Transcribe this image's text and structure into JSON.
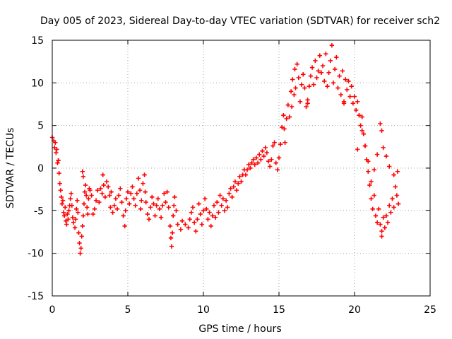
{
  "chart_data": {
    "type": "scatter",
    "title": "Day 005 of 2023, Sidereal Day-to-day VTEC variation (SDTVAR) for receiver sch2",
    "xlabel": "GPS time / hours",
    "ylabel": "SDTVAR / TECUs",
    "xlim": [
      0,
      25
    ],
    "ylim": [
      -15,
      15
    ],
    "xticks": [
      0,
      5,
      10,
      15,
      20,
      25
    ],
    "yticks": [
      -15,
      -10,
      -5,
      0,
      5,
      10,
      15
    ],
    "grid": true,
    "marker": "+",
    "color": "#ff0000",
    "series": [
      {
        "name": "sch2",
        "points": [
          [
            0.0,
            3.6
          ],
          [
            0.1,
            3.2
          ],
          [
            0.15,
            2.4
          ],
          [
            0.2,
            3.0
          ],
          [
            0.25,
            1.8
          ],
          [
            0.3,
            2.2
          ],
          [
            0.35,
            0.6
          ],
          [
            0.4,
            0.9
          ],
          [
            0.45,
            -0.6
          ],
          [
            0.5,
            -1.8
          ],
          [
            0.55,
            -2.6
          ],
          [
            0.6,
            -3.4
          ],
          [
            0.65,
            -4.2
          ],
          [
            0.7,
            -3.8
          ],
          [
            0.75,
            -5.2
          ],
          [
            0.8,
            -5.6
          ],
          [
            0.85,
            -4.6
          ],
          [
            0.9,
            -6.2
          ],
          [
            0.95,
            -6.6
          ],
          [
            1.0,
            -5.4
          ],
          [
            1.05,
            -6.0
          ],
          [
            1.1,
            -5.0
          ],
          [
            1.15,
            -4.4
          ],
          [
            1.2,
            -3.6
          ],
          [
            1.25,
            -3.0
          ],
          [
            1.3,
            -4.4
          ],
          [
            1.35,
            -5.8
          ],
          [
            1.4,
            -6.4
          ],
          [
            1.5,
            -7.0
          ],
          [
            1.55,
            -6.0
          ],
          [
            1.6,
            -4.8
          ],
          [
            1.65,
            -3.8
          ],
          [
            1.7,
            -5.2
          ],
          [
            1.75,
            -7.6
          ],
          [
            1.8,
            -8.8
          ],
          [
            1.85,
            -10.0
          ],
          [
            1.9,
            -9.4
          ],
          [
            1.95,
            -8.0
          ],
          [
            2.0,
            -6.8
          ],
          [
            2.05,
            -5.6
          ],
          [
            2.1,
            -4.2
          ],
          [
            2.15,
            -2.8
          ],
          [
            2.2,
            -2.0
          ],
          [
            2.25,
            -3.2
          ],
          [
            2.3,
            -4.6
          ],
          [
            2.35,
            -5.4
          ],
          [
            2.4,
            -3.6
          ],
          [
            2.45,
            -2.4
          ],
          [
            2.0,
            -0.4
          ],
          [
            2.05,
            -1.0
          ],
          [
            2.5,
            -2.6
          ],
          [
            2.6,
            -3.2
          ],
          [
            2.7,
            -5.4
          ],
          [
            2.8,
            -4.8
          ],
          [
            2.9,
            -3.8
          ],
          [
            3.0,
            -2.6
          ],
          [
            3.1,
            -4.0
          ],
          [
            3.2,
            -2.4
          ],
          [
            3.3,
            -3.0
          ],
          [
            3.35,
            -0.8
          ],
          [
            3.4,
            -2.0
          ],
          [
            3.5,
            -3.4
          ],
          [
            3.6,
            -1.6
          ],
          [
            3.7,
            -2.2
          ],
          [
            3.8,
            -3.2
          ],
          [
            3.85,
            -4.6
          ],
          [
            3.9,
            -2.8
          ],
          [
            4.0,
            -5.2
          ],
          [
            4.1,
            -4.4
          ],
          [
            4.2,
            -3.6
          ],
          [
            4.3,
            -4.8
          ],
          [
            4.4,
            -3.2
          ],
          [
            4.5,
            -2.4
          ],
          [
            4.6,
            -4.0
          ],
          [
            4.7,
            -5.6
          ],
          [
            4.8,
            -6.8
          ],
          [
            4.85,
            -5.0
          ],
          [
            4.9,
            -3.6
          ],
          [
            5.0,
            -2.8
          ],
          [
            5.1,
            -4.2
          ],
          [
            5.2,
            -3.0
          ],
          [
            5.3,
            -2.2
          ],
          [
            5.4,
            -3.6
          ],
          [
            5.5,
            -4.4
          ],
          [
            5.6,
            -3.0
          ],
          [
            5.7,
            -1.2
          ],
          [
            5.8,
            -2.6
          ],
          [
            5.85,
            -4.8
          ],
          [
            5.9,
            -3.8
          ],
          [
            6.0,
            -1.8
          ],
          [
            6.1,
            -0.8
          ],
          [
            6.15,
            -2.8
          ],
          [
            6.2,
            -4.0
          ],
          [
            6.3,
            -5.4
          ],
          [
            6.4,
            -6.0
          ],
          [
            6.5,
            -4.6
          ],
          [
            6.6,
            -3.4
          ],
          [
            6.7,
            -4.2
          ],
          [
            6.8,
            -5.6
          ],
          [
            6.9,
            -4.4
          ],
          [
            7.0,
            -3.6
          ],
          [
            7.1,
            -4.8
          ],
          [
            7.2,
            -5.8
          ],
          [
            7.3,
            -4.4
          ],
          [
            7.4,
            -3.0
          ],
          [
            7.5,
            -4.0
          ],
          [
            7.6,
            -2.8
          ],
          [
            7.7,
            -4.6
          ],
          [
            7.8,
            -6.8
          ],
          [
            7.85,
            -8.2
          ],
          [
            7.9,
            -9.2
          ],
          [
            7.95,
            -7.6
          ],
          [
            8.0,
            -5.6
          ],
          [
            8.05,
            -4.4
          ],
          [
            8.1,
            -3.4
          ],
          [
            8.2,
            -5.0
          ],
          [
            8.3,
            -6.6
          ],
          [
            8.5,
            -7.2
          ],
          [
            8.6,
            -6.2
          ],
          [
            8.8,
            -6.6
          ],
          [
            9.0,
            -7.0
          ],
          [
            9.1,
            -6.0
          ],
          [
            9.2,
            -5.2
          ],
          [
            9.3,
            -4.6
          ],
          [
            9.4,
            -6.4
          ],
          [
            9.5,
            -7.4
          ],
          [
            9.6,
            -6.0
          ],
          [
            9.7,
            -4.2
          ],
          [
            9.8,
            -5.4
          ],
          [
            9.9,
            -6.6
          ],
          [
            10.0,
            -5.0
          ],
          [
            10.1,
            -3.6
          ],
          [
            10.2,
            -4.8
          ],
          [
            10.3,
            -6.0
          ],
          [
            10.4,
            -5.2
          ],
          [
            10.5,
            -6.8
          ],
          [
            10.6,
            -5.6
          ],
          [
            10.7,
            -4.4
          ],
          [
            10.8,
            -5.8
          ],
          [
            10.9,
            -4.0
          ],
          [
            11.0,
            -5.2
          ],
          [
            11.1,
            -3.2
          ],
          [
            11.2,
            -4.4
          ],
          [
            11.3,
            -3.6
          ],
          [
            11.4,
            -5.0
          ],
          [
            11.5,
            -3.8
          ],
          [
            11.6,
            -4.6
          ],
          [
            11.7,
            -3.0
          ],
          [
            11.8,
            -2.4
          ],
          [
            11.9,
            -3.4
          ],
          [
            12.0,
            -2.2
          ],
          [
            12.1,
            -1.6
          ],
          [
            12.2,
            -2.6
          ],
          [
            12.3,
            -1.8
          ],
          [
            12.4,
            -1.0
          ],
          [
            12.5,
            -1.6
          ],
          [
            12.6,
            -0.8
          ],
          [
            12.7,
            -0.2
          ],
          [
            12.8,
            -0.8
          ],
          [
            12.9,
            -0.2
          ],
          [
            13.0,
            0.4
          ],
          [
            13.1,
            0.0
          ],
          [
            13.2,
            0.6
          ],
          [
            13.3,
            1.0
          ],
          [
            13.4,
            0.4
          ],
          [
            13.5,
            1.2
          ],
          [
            13.6,
            0.6
          ],
          [
            13.7,
            1.6
          ],
          [
            13.8,
            1.0
          ],
          [
            13.9,
            2.0
          ],
          [
            14.0,
            1.4
          ],
          [
            14.1,
            2.4
          ],
          [
            14.2,
            1.8
          ],
          [
            14.3,
            0.8
          ],
          [
            14.4,
            0.2
          ],
          [
            14.5,
            1.0
          ],
          [
            14.6,
            2.6
          ],
          [
            14.7,
            3.0
          ],
          [
            14.8,
            0.6
          ],
          [
            14.9,
            -0.2
          ],
          [
            15.0,
            1.2
          ],
          [
            15.1,
            2.8
          ],
          [
            15.2,
            4.8
          ],
          [
            15.3,
            6.2
          ],
          [
            15.35,
            4.6
          ],
          [
            15.4,
            3.0
          ],
          [
            15.5,
            5.8
          ],
          [
            15.6,
            7.4
          ],
          [
            15.7,
            6.0
          ],
          [
            15.8,
            9.0
          ],
          [
            15.85,
            7.2
          ],
          [
            15.9,
            10.4
          ],
          [
            16.0,
            8.6
          ],
          [
            16.05,
            11.6
          ],
          [
            16.1,
            9.4
          ],
          [
            16.2,
            12.2
          ],
          [
            16.3,
            10.6
          ],
          [
            16.4,
            7.8
          ],
          [
            16.5,
            9.8
          ],
          [
            16.6,
            11.0
          ],
          [
            16.7,
            9.4
          ],
          [
            16.8,
            7.2
          ],
          [
            16.9,
            8.0
          ],
          [
            17.0,
            9.6
          ],
          [
            17.1,
            10.8
          ],
          [
            17.2,
            11.8
          ],
          [
            17.3,
            9.8
          ],
          [
            17.4,
            12.6
          ],
          [
            17.5,
            10.6
          ],
          [
            17.6,
            11.4
          ],
          [
            17.7,
            13.2
          ],
          [
            17.8,
            11.2
          ],
          [
            17.9,
            12.0
          ],
          [
            18.0,
            10.2
          ],
          [
            18.1,
            13.4
          ],
          [
            18.2,
            9.6
          ],
          [
            18.3,
            11.2
          ],
          [
            18.4,
            12.6
          ],
          [
            18.5,
            14.4
          ],
          [
            18.6,
            10.0
          ],
          [
            18.7,
            11.6
          ],
          [
            18.8,
            13.0
          ],
          [
            18.9,
            9.4
          ],
          [
            19.0,
            10.8
          ],
          [
            19.1,
            8.6
          ],
          [
            19.2,
            11.4
          ],
          [
            19.3,
            7.6
          ],
          [
            19.4,
            10.4
          ],
          [
            19.5,
            9.2
          ],
          [
            19.6,
            10.2
          ],
          [
            19.7,
            8.4
          ],
          [
            19.8,
            9.6
          ],
          [
            19.9,
            7.6
          ],
          [
            20.0,
            8.4
          ],
          [
            20.1,
            6.8
          ],
          [
            20.2,
            7.8
          ],
          [
            20.3,
            6.2
          ],
          [
            20.4,
            5.0
          ],
          [
            20.5,
            6.0
          ],
          [
            20.6,
            4.0
          ],
          [
            20.7,
            2.6
          ],
          [
            20.8,
            1.0
          ],
          [
            20.9,
            -0.4
          ],
          [
            21.0,
            -2.0
          ],
          [
            21.1,
            -3.6
          ],
          [
            21.2,
            -4.8
          ],
          [
            21.3,
            -3.2
          ],
          [
            21.4,
            -5.6
          ],
          [
            21.5,
            -6.4
          ],
          [
            21.6,
            -4.8
          ],
          [
            21.7,
            -6.6
          ],
          [
            21.8,
            -7.4
          ],
          [
            21.9,
            -5.8
          ],
          [
            22.0,
            -7.0
          ],
          [
            22.1,
            -5.6
          ],
          [
            22.2,
            -6.4
          ],
          [
            22.3,
            -4.4
          ],
          [
            22.4,
            -5.2
          ],
          [
            22.5,
            -3.6
          ],
          [
            22.6,
            -4.6
          ],
          [
            22.7,
            -2.2
          ],
          [
            22.8,
            -3.2
          ],
          [
            22.85,
            -0.4
          ],
          [
            22.6,
            -0.8
          ],
          [
            22.3,
            0.2
          ],
          [
            22.1,
            1.4
          ],
          [
            21.9,
            2.4
          ],
          [
            21.8,
            4.4
          ],
          [
            21.7,
            5.2
          ],
          [
            21.5,
            1.6
          ],
          [
            21.3,
            -0.2
          ],
          [
            21.1,
            -1.6
          ],
          [
            20.9,
            0.8
          ],
          [
            20.7,
            2.6
          ],
          [
            20.5,
            4.4
          ],
          [
            21.8,
            -8.0
          ],
          [
            20.2,
            2.2
          ],
          [
            22.9,
            -4.2
          ],
          [
            19.3,
            7.8
          ],
          [
            16.9,
            7.6
          ]
        ]
      }
    ]
  }
}
